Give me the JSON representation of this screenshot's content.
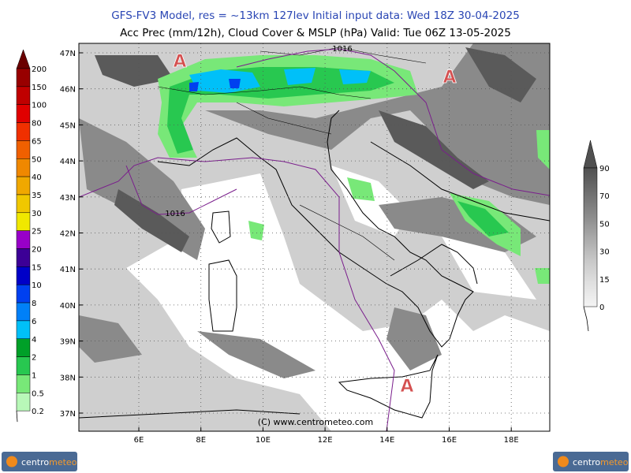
{
  "header": {
    "line1": "GFS-FV3 Model, res = ~13km 127lev    Initial input data: Wed 18Z 30-04-2025",
    "line2": "Acc Prec (mm/12h), Cloud Cover & MSLP (hPa)  Valid: Tue 06Z 13-05-2025"
  },
  "map": {
    "lat_labels": [
      "47N",
      "46N",
      "45N",
      "44N",
      "43N",
      "42N",
      "41N",
      "40N",
      "39N",
      "38N",
      "37N"
    ],
    "lon_labels": [
      "6E",
      "8E",
      "10E",
      "12E",
      "14E",
      "16E",
      "18E"
    ],
    "isobar_labels": [
      "1016",
      "1016"
    ],
    "high_markers": [
      "A",
      "A",
      "A"
    ],
    "copyright": "(C) www.centrometeo.com"
  },
  "precip_legend": {
    "labels": [
      "200",
      "150",
      "100",
      "80",
      "65",
      "50",
      "40",
      "35",
      "30",
      "25",
      "20",
      "15",
      "10",
      "8",
      "6",
      "4",
      "2",
      "1",
      "0.5",
      "0.2"
    ],
    "colors": [
      "#6a0000",
      "#980000",
      "#c00000",
      "#e00000",
      "#f03000",
      "#f06000",
      "#f08800",
      "#f0a800",
      "#f0c800",
      "#f0e800",
      "#9800c8",
      "#3c0096",
      "#0000c8",
      "#0040f0",
      "#0080f8",
      "#00c0f8",
      "#00a028",
      "#28c850",
      "#78e878",
      "#b8f8b8"
    ]
  },
  "cloud_legend": {
    "labels": [
      "90",
      "70",
      "50",
      "30",
      "15",
      "0"
    ]
  },
  "logos": [
    {
      "part1": "centro",
      "part2": "meteo"
    },
    {
      "part1": "centro",
      "part2": "meteo"
    }
  ]
}
